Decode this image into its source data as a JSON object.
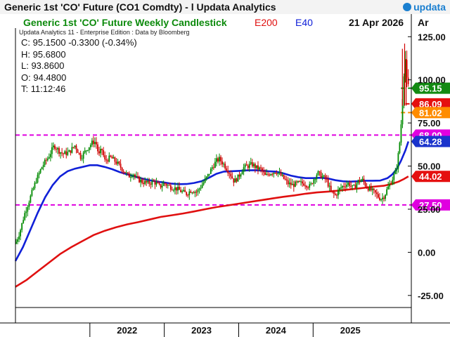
{
  "window": {
    "title": "Generic 1st 'CO' Future (CO1 Comdty) - l  Updata Analytics",
    "brand": "updata"
  },
  "chart_header": {
    "title": "Generic 1st 'CO' Future Weekly Candlestick",
    "ma_long_label": "E200",
    "ma_short_label": "E40",
    "date": "21 Apr 2026",
    "axis_unit": "Ar",
    "edition": "Updata Analytics 11 - Enterprise Edition : Data by Bloomberg"
  },
  "readout": {
    "close": "C: 95.1500  -0.3300 (-0.34%)",
    "high": "H: 95.6800",
    "low": "L: 93.8600",
    "open": "O: 94.4800",
    "time": "T: 11:12:46"
  },
  "colors": {
    "up": "#008a00",
    "down": "#d00000",
    "ma200": "#e01010",
    "ma40": "#1020d8",
    "level_magenta": "#e000e0",
    "last_green": "#138a13",
    "red_tag": "#e51010",
    "orange_tag": "#ff8c00",
    "blue_tag": "#1a33cc"
  },
  "chart_data": {
    "type": "candlestick",
    "title": "Generic 1st 'CO' Future Weekly Candlestick",
    "ylim": [
      -32,
      130
    ],
    "y_ticks": [
      "125.00",
      "100.00",
      "75.00",
      "50.00",
      "25.00",
      "0.00",
      "-25.00"
    ],
    "y_tick_values": [
      125,
      100,
      75,
      50,
      25,
      0,
      -25
    ],
    "x_ticks": [
      "2022",
      "2023",
      "2024",
      "2025"
    ],
    "x_tick_values": [
      2022.0,
      2023.0,
      2024.0,
      2025.0
    ],
    "xlim": [
      2021.0,
      2026.32
    ],
    "grid": false,
    "levels": [
      {
        "name": "level-68",
        "value": 68.0,
        "label": "68.00",
        "color": "#e000e0",
        "x_start": 2021.0
      },
      {
        "name": "level-27-5",
        "value": 27.5,
        "label": "27.50",
        "color": "#e000e0",
        "x_start": 2021.0
      },
      {
        "name": "level-95-15",
        "value": 95.15,
        "label": "95.15",
        "color": "#138a13",
        "x_start": 2026.18
      },
      {
        "name": "level-86-09",
        "value": 86.09,
        "label": "86.09",
        "color": "#e51010",
        "x_start": 2026.24
      },
      {
        "name": "level-81-02",
        "value": 81.02,
        "label": "81.02",
        "color": "#ff8c00",
        "x_start": 2026.18
      }
    ],
    "value_tags": [
      {
        "name": "tag-ma40",
        "value": 64.28,
        "label": "64.28",
        "color": "#1a33cc"
      },
      {
        "name": "tag-ma200",
        "value": 44.02,
        "label": "44.02",
        "color": "#e51010"
      }
    ],
    "close_path": [
      [
        2021.0,
        5
      ],
      [
        2021.06,
        12
      ],
      [
        2021.12,
        22
      ],
      [
        2021.2,
        32
      ],
      [
        2021.28,
        42
      ],
      [
        2021.36,
        50
      ],
      [
        2021.44,
        55
      ],
      [
        2021.52,
        62
      ],
      [
        2021.58,
        59
      ],
      [
        2021.64,
        57
      ],
      [
        2021.72,
        58
      ],
      [
        2021.8,
        62
      ],
      [
        2021.88,
        55
      ],
      [
        2021.96,
        60
      ],
      [
        2022.04,
        64
      ],
      [
        2022.08,
        64
      ],
      [
        2022.12,
        56
      ],
      [
        2022.16,
        60
      ],
      [
        2022.2,
        53
      ],
      [
        2022.28,
        55
      ],
      [
        2022.36,
        52
      ],
      [
        2022.44,
        48
      ],
      [
        2022.52,
        44
      ],
      [
        2022.58,
        46
      ],
      [
        2022.62,
        43
      ],
      [
        2022.7,
        41
      ],
      [
        2022.78,
        40
      ],
      [
        2022.86,
        41
      ],
      [
        2022.94,
        38
      ],
      [
        2023.0,
        40
      ],
      [
        2023.08,
        38
      ],
      [
        2023.16,
        37
      ],
      [
        2023.24,
        35
      ],
      [
        2023.3,
        34
      ],
      [
        2023.36,
        36
      ],
      [
        2023.44,
        35
      ],
      [
        2023.52,
        40
      ],
      [
        2023.58,
        44
      ],
      [
        2023.64,
        49
      ],
      [
        2023.7,
        53
      ],
      [
        2023.74,
        54
      ],
      [
        2023.8,
        51
      ],
      [
        2023.88,
        46
      ],
      [
        2023.94,
        41
      ],
      [
        2024.0,
        44
      ],
      [
        2024.06,
        49
      ],
      [
        2024.12,
        50
      ],
      [
        2024.18,
        51
      ],
      [
        2024.24,
        49
      ],
      [
        2024.3,
        48
      ],
      [
        2024.36,
        44
      ],
      [
        2024.42,
        46
      ],
      [
        2024.5,
        47
      ],
      [
        2024.58,
        44
      ],
      [
        2024.66,
        40
      ],
      [
        2024.72,
        39
      ],
      [
        2024.8,
        40
      ],
      [
        2024.88,
        40
      ],
      [
        2024.96,
        38
      ],
      [
        2025.0,
        42
      ],
      [
        2025.06,
        46
      ],
      [
        2025.12,
        44
      ],
      [
        2025.18,
        42
      ],
      [
        2025.24,
        35
      ],
      [
        2025.3,
        33
      ],
      [
        2025.36,
        37
      ],
      [
        2025.42,
        39
      ],
      [
        2025.48,
        40
      ],
      [
        2025.54,
        37
      ],
      [
        2025.6,
        41
      ],
      [
        2025.66,
        42
      ],
      [
        2025.72,
        38
      ],
      [
        2025.78,
        36
      ],
      [
        2025.84,
        34
      ],
      [
        2025.88,
        32
      ],
      [
        2025.92,
        31
      ],
      [
        2025.96,
        33
      ],
      [
        2026.0,
        37
      ],
      [
        2026.04,
        40
      ],
      [
        2026.08,
        44
      ],
      [
        2026.12,
        48
      ],
      [
        2026.14,
        55
      ],
      [
        2026.16,
        62
      ],
      [
        2026.18,
        72
      ],
      [
        2026.2,
        90
      ],
      [
        2026.22,
        105
      ],
      [
        2026.24,
        112
      ],
      [
        2026.26,
        98
      ],
      [
        2026.28,
        95.15
      ]
    ],
    "series": [
      {
        "name": "E40",
        "color": "#1020d8",
        "points": [
          [
            2021.0,
            -5
          ],
          [
            2021.1,
            3
          ],
          [
            2021.2,
            13
          ],
          [
            2021.3,
            23
          ],
          [
            2021.4,
            32
          ],
          [
            2021.5,
            39
          ],
          [
            2021.6,
            44
          ],
          [
            2021.7,
            47
          ],
          [
            2021.8,
            48.5
          ],
          [
            2021.9,
            49.5
          ],
          [
            2022.0,
            50.5
          ],
          [
            2022.1,
            50.5
          ],
          [
            2022.2,
            49.5
          ],
          [
            2022.3,
            48.2
          ],
          [
            2022.4,
            46.5
          ],
          [
            2022.5,
            45.2
          ],
          [
            2022.6,
            44
          ],
          [
            2022.7,
            42.8
          ],
          [
            2022.8,
            41.8
          ],
          [
            2022.9,
            41
          ],
          [
            2023.0,
            40.5
          ],
          [
            2023.1,
            39.8
          ],
          [
            2023.2,
            39.5
          ],
          [
            2023.3,
            39.6
          ],
          [
            2023.4,
            40.2
          ],
          [
            2023.5,
            41.2
          ],
          [
            2023.6,
            43.2
          ],
          [
            2023.7,
            45.5
          ],
          [
            2023.8,
            46.8
          ],
          [
            2023.9,
            47
          ],
          [
            2024.0,
            47.2
          ],
          [
            2024.1,
            47.5
          ],
          [
            2024.2,
            47.6
          ],
          [
            2024.3,
            47.4
          ],
          [
            2024.4,
            47
          ],
          [
            2024.5,
            46.8
          ],
          [
            2024.6,
            45.8
          ],
          [
            2024.7,
            44.5
          ],
          [
            2024.8,
            43.6
          ],
          [
            2024.9,
            43
          ],
          [
            2025.0,
            43
          ],
          [
            2025.1,
            43.2
          ],
          [
            2025.2,
            42.8
          ],
          [
            2025.3,
            41.8
          ],
          [
            2025.4,
            41.2
          ],
          [
            2025.5,
            41
          ],
          [
            2025.6,
            41.2
          ],
          [
            2025.7,
            41.5
          ],
          [
            2025.8,
            41.5
          ],
          [
            2025.9,
            41.6
          ],
          [
            2026.0,
            43
          ],
          [
            2026.06,
            45
          ],
          [
            2026.12,
            48
          ],
          [
            2026.18,
            53
          ],
          [
            2026.24,
            59
          ],
          [
            2026.28,
            64.28
          ]
        ]
      },
      {
        "name": "E200",
        "color": "#e01010",
        "points": [
          [
            2021.0,
            -20
          ],
          [
            2021.15,
            -16
          ],
          [
            2021.3,
            -11
          ],
          [
            2021.45,
            -6
          ],
          [
            2021.6,
            -1
          ],
          [
            2021.75,
            3
          ],
          [
            2021.9,
            6.5
          ],
          [
            2022.05,
            10
          ],
          [
            2022.2,
            12.5
          ],
          [
            2022.35,
            14.5
          ],
          [
            2022.5,
            16.2
          ],
          [
            2022.65,
            17.5
          ],
          [
            2022.8,
            19
          ],
          [
            2022.95,
            20.5
          ],
          [
            2023.1,
            21.5
          ],
          [
            2023.25,
            22.5
          ],
          [
            2023.4,
            23.7
          ],
          [
            2023.55,
            25
          ],
          [
            2023.7,
            26.2
          ],
          [
            2023.85,
            27.2
          ],
          [
            2024.0,
            28.2
          ],
          [
            2024.15,
            29.2
          ],
          [
            2024.3,
            30.2
          ],
          [
            2024.45,
            31.2
          ],
          [
            2024.6,
            32.2
          ],
          [
            2024.75,
            33
          ],
          [
            2024.9,
            34
          ],
          [
            2025.05,
            34.7
          ],
          [
            2025.2,
            35.2
          ],
          [
            2025.35,
            35.8
          ],
          [
            2025.5,
            36.5
          ],
          [
            2025.65,
            37.2
          ],
          [
            2025.8,
            38
          ],
          [
            2025.95,
            38.6
          ],
          [
            2026.05,
            39.6
          ],
          [
            2026.15,
            41
          ],
          [
            2026.22,
            42.5
          ],
          [
            2026.28,
            44.02
          ]
        ]
      }
    ]
  }
}
